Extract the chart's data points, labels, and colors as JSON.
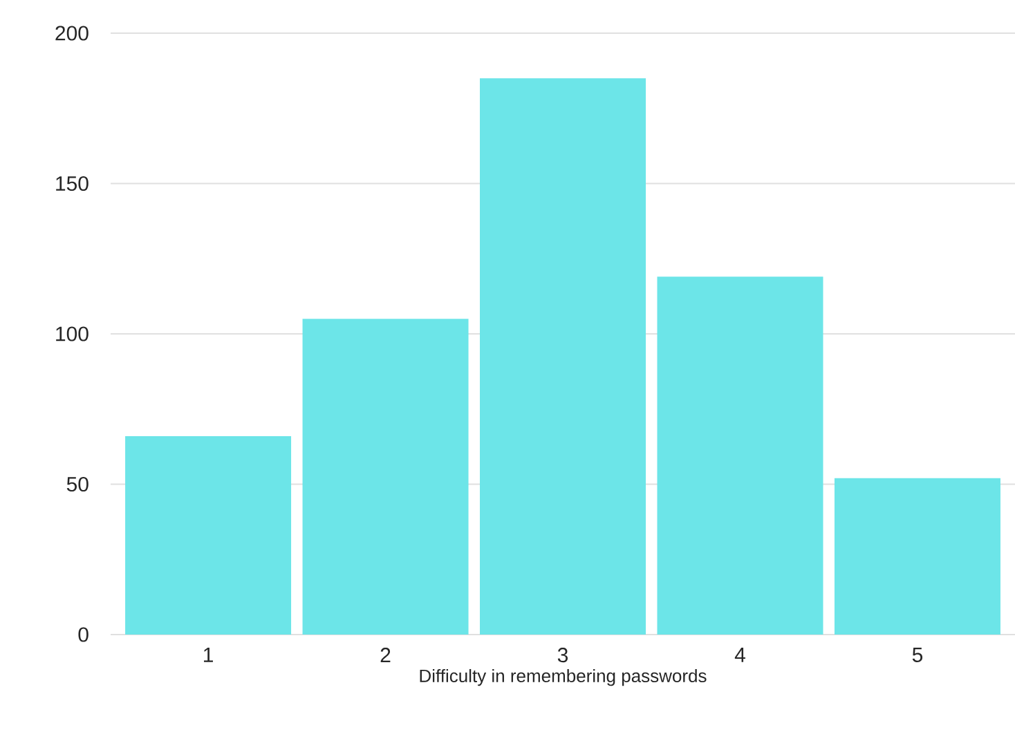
{
  "chart_data": {
    "type": "bar",
    "xlabel": "Difficulty in remembering passwords",
    "categories": [
      "1",
      "2",
      "3",
      "4",
      "5"
    ],
    "values": [
      66,
      105,
      185,
      119,
      52
    ],
    "color": "#6ce5e8",
    "ylim": [
      0,
      200
    ],
    "yticks": [
      0,
      50,
      100,
      150,
      200
    ],
    "grid": "y"
  }
}
